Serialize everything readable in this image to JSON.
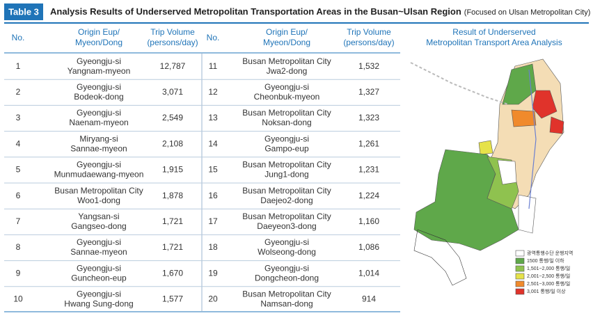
{
  "header": {
    "label": "Table 3",
    "title": "Analysis Results of Underserved Metropolitan Transportation Areas in the Busan~Ulsan Region",
    "subtitle": "(Focused on Ulsan Metropolitan City)"
  },
  "table": {
    "columns": [
      [
        "No."
      ],
      [
        "Origin Eup/",
        "Myeon/Dong"
      ],
      [
        "Trip Volume",
        "(persons/day)"
      ]
    ],
    "rows": [
      {
        "no": "1",
        "origin": [
          "Gyeongju-si",
          "Yangnam-myeon"
        ],
        "trips": "12,787"
      },
      {
        "no": "2",
        "origin": [
          "Gyeongju-si",
          "Bodeok-dong"
        ],
        "trips": "3,071"
      },
      {
        "no": "3",
        "origin": [
          "Gyeongju-si",
          "Naenam-myeon"
        ],
        "trips": "2,549"
      },
      {
        "no": "4",
        "origin": [
          "Miryang-si",
          "Sannae-myeon"
        ],
        "trips": "2,108"
      },
      {
        "no": "5",
        "origin": [
          "Gyeongju-si",
          "Munmudaewang-myeon"
        ],
        "trips": "1,915"
      },
      {
        "no": "6",
        "origin": [
          "Busan Metropolitan City",
          "Woo1-dong"
        ],
        "trips": "1,878"
      },
      {
        "no": "7",
        "origin": [
          "Yangsan-si",
          "Gangseo-dong"
        ],
        "trips": "1,721"
      },
      {
        "no": "8",
        "origin": [
          "Gyeongju-si",
          "Sannae-myeon"
        ],
        "trips": "1,721"
      },
      {
        "no": "9",
        "origin": [
          "Gyeongju-si",
          "Guncheon-eup"
        ],
        "trips": "1,670"
      },
      {
        "no": "10",
        "origin": [
          "Gyeongju-si",
          "Hwang Sung-dong"
        ],
        "trips": "1,577"
      },
      {
        "no": "11",
        "origin": [
          "Busan Metropolitan City",
          "Jwa2-dong"
        ],
        "trips": "1,532"
      },
      {
        "no": "12",
        "origin": [
          "Gyeongju-si",
          "Cheonbuk-myeon"
        ],
        "trips": "1,327"
      },
      {
        "no": "13",
        "origin": [
          "Busan Metropolitan City",
          "Noksan-dong"
        ],
        "trips": "1,323"
      },
      {
        "no": "14",
        "origin": [
          "Gyeongju-si",
          "Gampo-eup"
        ],
        "trips": "1,261"
      },
      {
        "no": "15",
        "origin": [
          "Busan Metropolitan City",
          "Jung1-dong"
        ],
        "trips": "1,231"
      },
      {
        "no": "16",
        "origin": [
          "Busan Metropolitan City",
          "Daejeo2-dong"
        ],
        "trips": "1,224"
      },
      {
        "no": "17",
        "origin": [
          "Busan Metropolitan City",
          "Daeyeon3-dong"
        ],
        "trips": "1,160"
      },
      {
        "no": "18",
        "origin": [
          "Gyeongju-si",
          "Wolseong-dong"
        ],
        "trips": "1,086"
      },
      {
        "no": "19",
        "origin": [
          "Gyeongju-si",
          "Dongcheon-dong"
        ],
        "trips": "1,014"
      },
      {
        "no": "20",
        "origin": [
          "Busan Metropolitan City",
          "Namsan-dong"
        ],
        "trips": "914"
      }
    ]
  },
  "map": {
    "title": [
      "Result of Underserved",
      "Metropolitan Transport Area Analysis"
    ],
    "legend": [
      {
        "label": "광역통행수단 운행지역",
        "color": "#ffffff"
      },
      {
        "label": "1500 통행/일 이하",
        "color": "#5fa84a"
      },
      {
        "label": "1,501~2,000 통행/일",
        "color": "#8fc24f"
      },
      {
        "label": "2,001~2,500 통행/일",
        "color": "#e6e24a"
      },
      {
        "label": "2,501~3,000 통행/일",
        "color": "#f08a2c"
      },
      {
        "label": "3,001 통행/일 이상",
        "color": "#e0332b"
      }
    ]
  }
}
